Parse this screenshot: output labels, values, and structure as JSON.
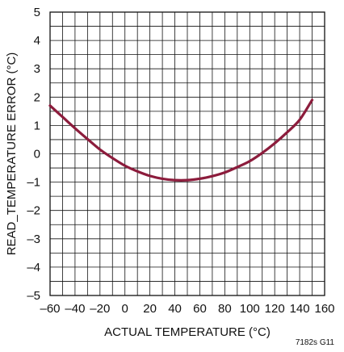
{
  "chart_data": {
    "type": "line",
    "title": "",
    "xlabel": "ACTUAL TEMPERATURE (°C)",
    "ylabel": "READ_TEMPERATURE ERROR (°C)",
    "xlim": [
      -60,
      160
    ],
    "ylim": [
      -5,
      5
    ],
    "grid": true,
    "xticks": [
      -60,
      -40,
      -20,
      0,
      20,
      40,
      60,
      80,
      100,
      120,
      140,
      160
    ],
    "xtick_labels": [
      "–60",
      "–40",
      "–20",
      "0",
      "20",
      "40",
      "60",
      "80",
      "100",
      "120",
      "140",
      "160"
    ],
    "yticks": [
      -5,
      -4,
      -3,
      -2,
      -1,
      0,
      1,
      2,
      3,
      4,
      5
    ],
    "ytick_labels": [
      "–5",
      "–4",
      "–3",
      "–2",
      "–1",
      "0",
      "1",
      "2",
      "3",
      "4",
      "5"
    ],
    "series": [
      {
        "color": "#8c1c3c",
        "x": [
          -60,
          -50,
          -40,
          -30,
          -20,
          -10,
          0,
          10,
          20,
          30,
          40,
          50,
          60,
          70,
          80,
          90,
          100,
          110,
          120,
          130,
          140,
          150
        ],
        "y": [
          1.7,
          1.3,
          0.9,
          0.52,
          0.15,
          -0.15,
          -0.42,
          -0.62,
          -0.78,
          -0.88,
          -0.93,
          -0.93,
          -0.88,
          -0.79,
          -0.66,
          -0.47,
          -0.26,
          0.03,
          0.37,
          0.76,
          1.2,
          1.9
        ]
      }
    ],
    "annotation": "7182s G11"
  }
}
